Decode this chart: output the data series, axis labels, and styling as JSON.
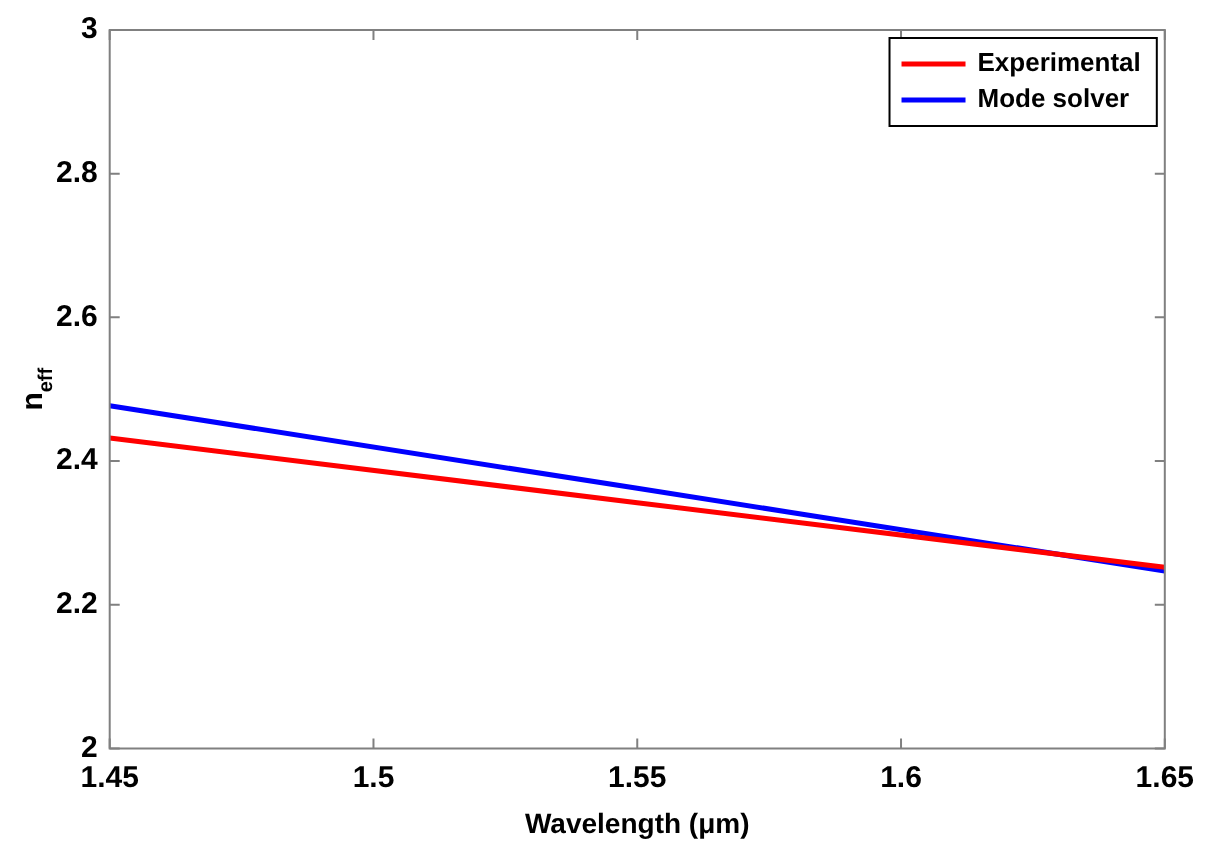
{
  "chart_data": {
    "type": "line",
    "xlabel": "Wavelength (μm)",
    "ylabel": "n$_{eff}$",
    "xlim": [
      1.45,
      1.65
    ],
    "xticks": [
      1.45,
      1.5,
      1.55,
      1.6,
      1.65
    ],
    "ylim": [
      2,
      3
    ],
    "yticks": [
      2,
      2.2,
      2.4,
      2.6,
      2.8,
      3
    ],
    "grid": false,
    "legend": "top right",
    "line_style": "solid",
    "marker": "none",
    "x": [
      1.45,
      1.55,
      1.65
    ],
    "series": [
      {
        "name": "Experimental",
        "color": "#ff0000",
        "values": [
          2.432,
          2.342,
          2.252
        ]
      },
      {
        "name": "Mode solver",
        "color": "#0000ff",
        "values": [
          2.477,
          2.362,
          2.247
        ]
      }
    ]
  }
}
